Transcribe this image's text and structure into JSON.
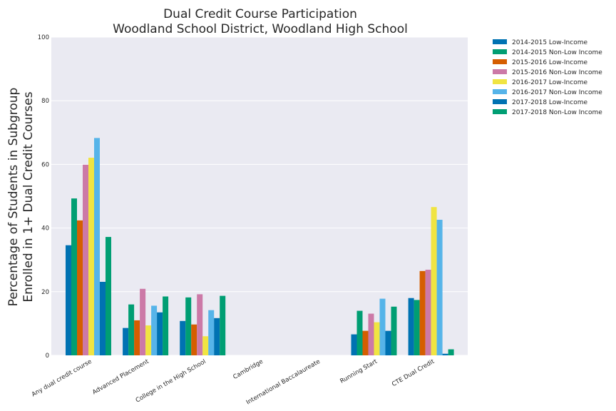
{
  "chart_data": {
    "type": "bar",
    "title": [
      "Dual Credit Course Participation",
      "Woodland School District, Woodland High School"
    ],
    "ylabel": [
      "Percentage of Students in Subgroup",
      "Enrolled in 1+ Dual Credit Courses"
    ],
    "xlabel": "",
    "ylim": [
      0,
      100
    ],
    "yticks": [
      "0",
      "20",
      "40",
      "60",
      "80",
      "100"
    ],
    "grid": true,
    "legend_position": "outside-top-right",
    "categories": [
      "Any dual credit course",
      "Advanced Placement",
      "College in the High School",
      "Cambridge",
      "International Baccalaureate",
      "Running Start",
      "CTE Dual Credit"
    ],
    "series": [
      {
        "name": "2014-2015 Low-Income",
        "color": "#0072b2",
        "values": [
          34.6,
          8.6,
          10.8,
          0,
          0,
          6.6,
          18.0
        ]
      },
      {
        "name": "2014-2015 Non-Low Income",
        "color": "#009e73",
        "values": [
          49.3,
          16.0,
          18.2,
          0,
          0,
          14.0,
          17.4
        ]
      },
      {
        "name": "2015-2016 Low-Income",
        "color": "#d55e00",
        "values": [
          42.4,
          11.0,
          9.7,
          0,
          0,
          7.7,
          26.5
        ]
      },
      {
        "name": "2015-2016 Non-Low Income",
        "color": "#cc79a7",
        "values": [
          59.9,
          20.9,
          19.2,
          0,
          0,
          13.1,
          26.9
        ]
      },
      {
        "name": "2016-2017 Low-Income",
        "color": "#f0e442",
        "values": [
          62.1,
          9.4,
          6.0,
          0,
          0,
          10.4,
          46.6
        ]
      },
      {
        "name": "2016-2017 Non-Low Income",
        "color": "#56b4e9",
        "values": [
          68.3,
          15.6,
          14.2,
          0,
          0,
          17.8,
          42.6
        ]
      },
      {
        "name": "2017-2018 Low-Income",
        "color": "#0072b2",
        "values": [
          23.1,
          13.5,
          11.7,
          0,
          0,
          7.7,
          0.5
        ]
      },
      {
        "name": "2017-2018 Non-Low Income",
        "color": "#009e73",
        "values": [
          37.2,
          18.5,
          18.7,
          0,
          0,
          15.3,
          1.9
        ]
      }
    ]
  }
}
